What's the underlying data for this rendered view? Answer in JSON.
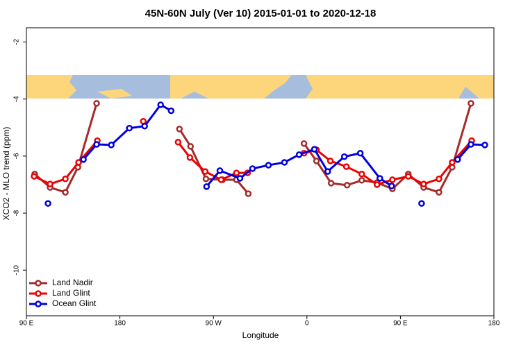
{
  "chart_data": {
    "type": "line",
    "title": "45N-60N July (Ver 10)   2015-01-01 to 2020-12-18",
    "xlabel": "Longitude",
    "ylabel": "XCO2 - MLO trend (ppm)",
    "xlim": [
      90,
      540
    ],
    "ylim": [
      -11.6,
      -1.5
    ],
    "xticks": [
      {
        "value": 90,
        "label": "90 E"
      },
      {
        "value": 180,
        "label": "180"
      },
      {
        "value": 270,
        "label": "90 W"
      },
      {
        "value": 360,
        "label": "0"
      },
      {
        "value": 450,
        "label": "90 E"
      },
      {
        "value": 540,
        "label": "180"
      }
    ],
    "yticks": [
      -2,
      -4,
      -6,
      -8,
      -10
    ],
    "legend": "bottom-left",
    "series": [
      {
        "name": "Land Nadir",
        "color": "#a52a2a",
        "x": [
          98,
          112.8,
          127.5,
          139.6,
          157.6,
          null,
          237.3,
          248,
          262.8,
          278.8,
          292.2,
          303.6,
          null,
          357.2,
          369.2,
          383.3,
          398.7,
          412.8,
          427.5,
          442.3,
          457.6,
          472.4,
          487.1,
          499.8,
          517.9
        ],
        "values": [
          -6.63,
          -7.1,
          -7.27,
          -6.39,
          -4.15,
          null,
          -5.05,
          -5.66,
          -6.8,
          -6.83,
          -6.83,
          -7.32,
          null,
          -5.56,
          -6.17,
          -6.95,
          -7.02,
          -6.85,
          -6.93,
          -7.15,
          -6.63,
          -7.1,
          -7.27,
          -6.39,
          -4.15
        ]
      },
      {
        "name": "Land Glint",
        "color": "#ee0000",
        "x": [
          97.4,
          112.8,
          127.5,
          140.2,
          158.3,
          null,
          202.5,
          null,
          236,
          247.4,
          262.1,
          277.5,
          292.2,
          302.9,
          null,
          357.2,
          369.2,
          382.6,
          398,
          412.8,
          427.5,
          442.3,
          457.6,
          472.4,
          487.1,
          499.8,
          518.6
        ],
        "values": [
          -6.71,
          -6.98,
          -6.8,
          -6.22,
          -5.46,
          null,
          -4.78,
          null,
          -5.51,
          -6.05,
          -6.54,
          -6.83,
          -6.59,
          -6.59,
          null,
          -5.9,
          -5.78,
          -6.17,
          -6.37,
          -6.63,
          -7.0,
          -6.83,
          -6.71,
          -6.98,
          -6.8,
          -6.22,
          -5.46
        ]
      },
      {
        "name": "Ocean Glint",
        "color": "#0000dd",
        "x": [
          110.8,
          null,
          144.9,
          157.6,
          171.7,
          189.1,
          203.8,
          219.2,
          229.3,
          null,
          263.4,
          276.2,
          295.6,
          307.6,
          323,
          338.4,
          352.5,
          367.2,
          380,
          396,
          411.4,
          430.2,
          441.6,
          null,
          470.4,
          null,
          505.1,
          517.9,
          531.3
        ],
        "values": [
          -7.66,
          null,
          -6.12,
          -5.59,
          -5.61,
          -5.02,
          -4.95,
          -4.2,
          -4.41,
          null,
          -7.07,
          -6.51,
          -6.78,
          -6.44,
          -6.32,
          -6.22,
          -5.95,
          -5.76,
          -6.54,
          -6.02,
          -5.9,
          -6.78,
          -7.05,
          null,
          -7.66,
          null,
          -6.12,
          -5.59,
          -5.61
        ]
      }
    ]
  }
}
